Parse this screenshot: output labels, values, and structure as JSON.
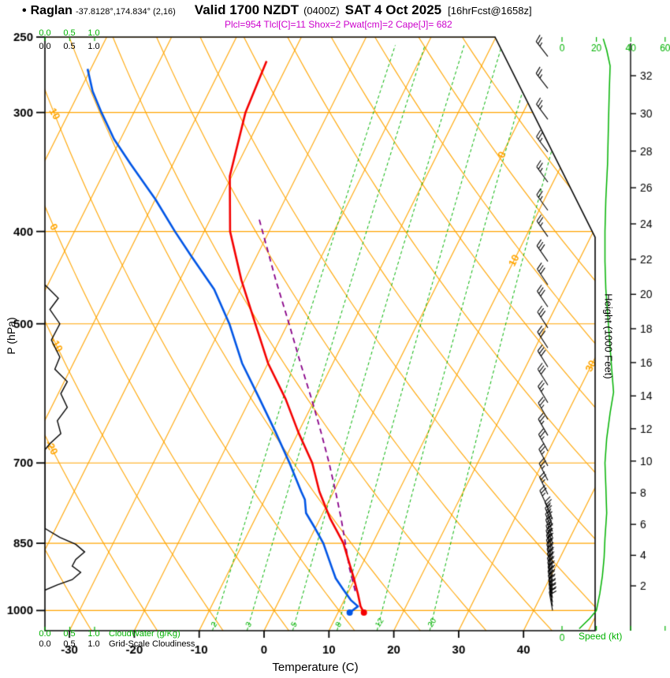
{
  "header": {
    "bullet": "•",
    "station": "Raglan",
    "coords": "-37.8128°,174.834° (2,16)",
    "valid": "Valid 1700 NZDT",
    "zulu": "(0400Z)",
    "date": "SAT 4 Oct 2025",
    "fcst": "[16hrFcst@1658z]",
    "indices": "Plcl=954 Tlcl[C]=11 Shox=2 Pwat[cm]=2 Cape[J]= 682"
  },
  "labels": {
    "pressure_axis": "P (hPa)",
    "temp_axis": "Temperature (C)",
    "height_axis": "Height (1000 Feet)",
    "speed_axis": "Speed (kt)",
    "cloudwater": "CloudWater (g/Kg)",
    "cloudiness": "Grid-Scale Cloudiness"
  },
  "colors": {
    "grid_orange": "#FFA500",
    "green": "#00B200",
    "temperature_red": "#F40000",
    "dewpoint_blue": "#0055E5",
    "parcel_purple": "#880088",
    "indices_magenta": "#CC00CC",
    "black": "#000000"
  },
  "chart_data": {
    "type": "skewt_logp_sounding",
    "pressure_axis": {
      "scale": "log",
      "range_hPa": [
        1050,
        250
      ],
      "ticks": [
        250,
        300,
        400,
        500,
        700,
        850,
        1000
      ]
    },
    "temperature_axis": {
      "units": "C",
      "ticks": [
        -30,
        -20,
        -10,
        0,
        10,
        20,
        30,
        40
      ]
    },
    "height_axis": {
      "units": "1000 ft",
      "ticks_kft": [
        2,
        4,
        6,
        8,
        10,
        12,
        14,
        16,
        18,
        20,
        22,
        24,
        26,
        28,
        30,
        32
      ]
    },
    "speed_axis": {
      "units": "kt",
      "ticks_kt": [
        0,
        20,
        40,
        60
      ]
    },
    "cloud_scale": {
      "ticks": [
        "0.0",
        "0.5",
        "1.0"
      ]
    },
    "isotherm_lines_C": {
      "min": -80,
      "max": 50,
      "step": 10
    },
    "dry_adiabat_lines_C": {
      "min": -30,
      "max": 120,
      "step": 10
    },
    "isotherm_labels": [
      {
        "t": 0,
        "p": 331
      },
      {
        "t": 10,
        "p": 430
      },
      {
        "t": 30,
        "p": 555
      }
    ],
    "dry_adiabat_labels": [
      {
        "theta": 10,
        "p": 301
      },
      {
        "theta": 0,
        "p": 398
      },
      {
        "theta": -10,
        "p": 524
      },
      {
        "theta": -20,
        "p": 672
      }
    ],
    "mixing_ratio_lines_gkg": [
      2,
      3,
      5,
      8,
      12,
      20
    ],
    "temperature_profile": [
      [
        1005,
        14
      ],
      [
        990,
        13
      ],
      [
        960,
        11.6
      ],
      [
        925,
        9.8
      ],
      [
        900,
        8.4
      ],
      [
        850,
        5.5
      ],
      [
        800,
        1.5
      ],
      [
        750,
        -2.2
      ],
      [
        700,
        -5.5
      ],
      [
        650,
        -10
      ],
      [
        600,
        -14.5
      ],
      [
        550,
        -20
      ],
      [
        500,
        -25
      ],
      [
        450,
        -30.5
      ],
      [
        400,
        -36
      ],
      [
        350,
        -40.3
      ],
      [
        300,
        -42.8
      ],
      [
        280,
        -43.2
      ],
      [
        265,
        -43.5
      ]
    ],
    "dewpoint_profile": [
      [
        1005,
        11.8
      ],
      [
        990,
        12.6
      ],
      [
        975,
        11
      ],
      [
        950,
        9
      ],
      [
        925,
        7
      ],
      [
        900,
        5.5
      ],
      [
        850,
        2.4
      ],
      [
        820,
        0
      ],
      [
        790,
        -2.6
      ],
      [
        765,
        -3.8
      ],
      [
        750,
        -5
      ],
      [
        700,
        -9
      ],
      [
        650,
        -13.5
      ],
      [
        600,
        -18.5
      ],
      [
        550,
        -24
      ],
      [
        500,
        -29
      ],
      [
        460,
        -34
      ],
      [
        425,
        -40
      ],
      [
        400,
        -44.5
      ],
      [
        370,
        -50
      ],
      [
        340,
        -56.5
      ],
      [
        320,
        -61
      ],
      [
        300,
        -65
      ],
      [
        285,
        -68
      ],
      [
        270,
        -70.5
      ]
    ],
    "parcel_profile": [
      [
        954,
        11
      ],
      [
        900,
        8.2
      ],
      [
        850,
        5.8
      ],
      [
        800,
        3.2
      ],
      [
        750,
        0.3
      ],
      [
        700,
        -2.9
      ],
      [
        650,
        -6.5
      ],
      [
        600,
        -10.5
      ],
      [
        550,
        -15
      ],
      [
        500,
        -19.8
      ],
      [
        450,
        -25.2
      ],
      [
        400,
        -31
      ],
      [
        388,
        -32.5
      ]
    ],
    "cloudiness_profile": [
      [
        455,
        0
      ],
      [
        470,
        0.27
      ],
      [
        483,
        0.1
      ],
      [
        500,
        0.3
      ],
      [
        520,
        0.13
      ],
      [
        542,
        0.3
      ],
      [
        558,
        0.2
      ],
      [
        575,
        0.45
      ],
      [
        592,
        0.32
      ],
      [
        612,
        0.45
      ],
      [
        632,
        0.25
      ],
      [
        652,
        0.32
      ],
      [
        668,
        0.1
      ],
      [
        678,
        0
      ],
      [
        820,
        0
      ],
      [
        838,
        0.3
      ],
      [
        852,
        0.62
      ],
      [
        868,
        0.8
      ],
      [
        884,
        0.62
      ],
      [
        898,
        0.55
      ],
      [
        912,
        0.72
      ],
      [
        928,
        0.55
      ],
      [
        940,
        0.25
      ],
      [
        952,
        0
      ]
    ],
    "wind_speed_profile_kt": [
      [
        1045,
        10
      ],
      [
        1020,
        16
      ],
      [
        1000,
        20
      ],
      [
        960,
        22
      ],
      [
        920,
        23.5
      ],
      [
        880,
        24.5
      ],
      [
        840,
        25
      ],
      [
        790,
        26
      ],
      [
        740,
        25.5
      ],
      [
        700,
        25
      ],
      [
        660,
        26
      ],
      [
        620,
        28
      ],
      [
        590,
        30
      ],
      [
        560,
        29
      ],
      [
        530,
        28
      ],
      [
        500,
        27
      ],
      [
        460,
        25.5
      ],
      [
        430,
        25
      ],
      [
        400,
        25
      ],
      [
        370,
        25.5
      ],
      [
        340,
        26.5
      ],
      [
        310,
        27
      ],
      [
        285,
        27.5
      ],
      [
        268,
        28
      ],
      [
        258,
        26
      ],
      [
        251,
        24
      ]
    ],
    "wind_barbs": [
      [
        1000,
        18,
        350
      ],
      [
        990,
        18,
        350
      ],
      [
        980,
        18,
        349
      ],
      [
        970,
        19,
        348
      ],
      [
        960,
        19,
        347
      ],
      [
        950,
        20,
        346
      ],
      [
        940,
        20,
        346
      ],
      [
        930,
        20,
        345
      ],
      [
        920,
        21,
        344
      ],
      [
        910,
        21,
        344
      ],
      [
        900,
        22,
        343
      ],
      [
        890,
        22,
        342
      ],
      [
        880,
        22,
        341
      ],
      [
        870,
        23,
        341
      ],
      [
        860,
        23,
        340
      ],
      [
        850,
        23,
        340
      ],
      [
        838,
        24,
        339
      ],
      [
        826,
        24,
        338
      ],
      [
        814,
        24,
        337
      ],
      [
        802,
        25,
        336
      ],
      [
        780,
        25,
        335
      ],
      [
        755,
        25,
        334
      ],
      [
        730,
        26,
        333
      ],
      [
        705,
        26,
        332
      ],
      [
        680,
        26,
        331
      ],
      [
        655,
        27,
        330
      ],
      [
        630,
        27,
        330
      ],
      [
        605,
        27,
        329
      ],
      [
        580,
        28,
        328
      ],
      [
        555,
        28,
        328
      ],
      [
        530,
        29,
        327
      ],
      [
        505,
        29,
        327
      ],
      [
        480,
        29,
        326
      ],
      [
        455,
        28,
        326
      ],
      [
        430,
        28,
        325
      ],
      [
        405,
        27,
        325
      ],
      [
        380,
        27,
        324
      ],
      [
        355,
        26,
        324
      ],
      [
        330,
        26,
        323
      ],
      [
        305,
        27,
        323
      ],
      [
        283,
        27,
        322
      ],
      [
        262,
        26,
        322
      ]
    ]
  }
}
